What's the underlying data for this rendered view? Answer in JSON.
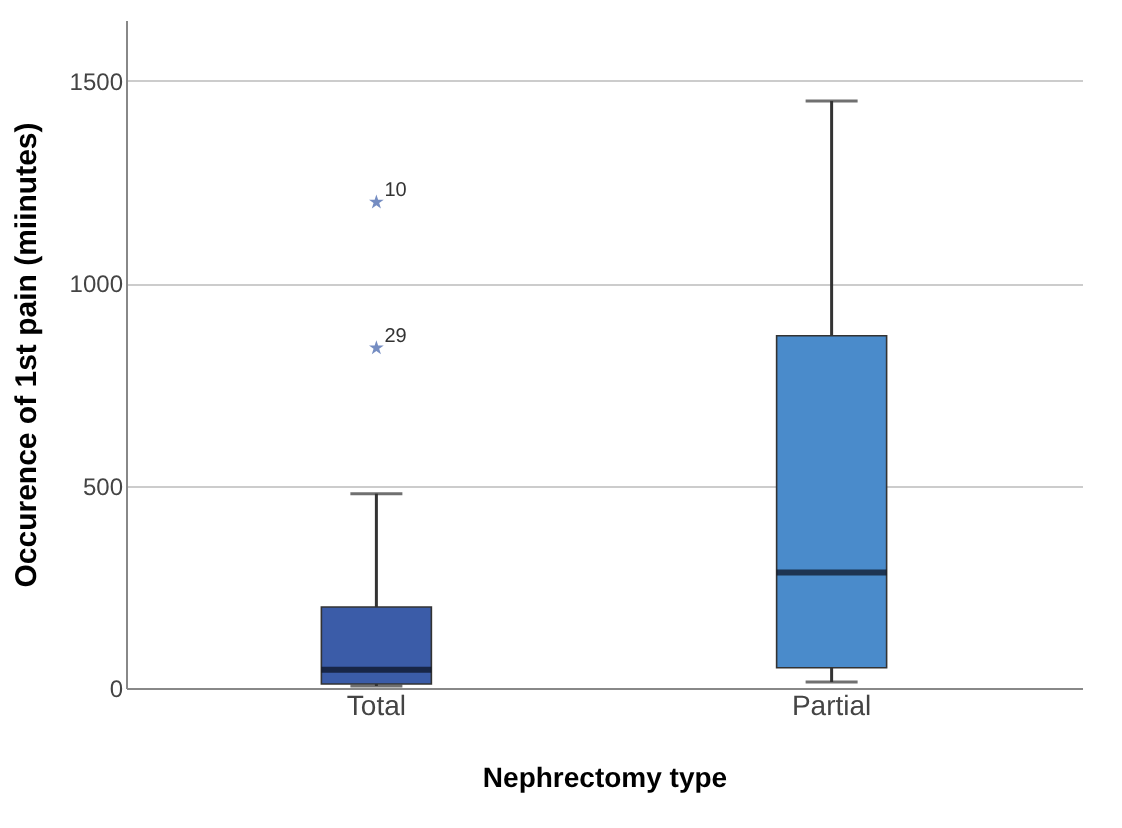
{
  "chart_data": {
    "type": "box",
    "xlabel": "Nephrectomy type",
    "ylabel": "Occurence of 1st pain (miinutes)",
    "categories": [
      "Total",
      "Partial"
    ],
    "boxes": [
      {
        "low": 5,
        "q1": 10,
        "median": 45,
        "q3": 200,
        "high": 480,
        "outliers": [
          1200,
          840
        ]
      },
      {
        "low": 15,
        "q1": 50,
        "median": 285,
        "q3": 870,
        "high": 1450
      }
    ],
    "colors": [
      "#3b5ca8",
      "#4a8bcb"
    ],
    "ylim": [
      0,
      1650
    ],
    "yticks": [
      0,
      500,
      1000,
      1500
    ],
    "grid": "y",
    "marker": "star",
    "annotations": [
      "10",
      "29"
    ]
  }
}
